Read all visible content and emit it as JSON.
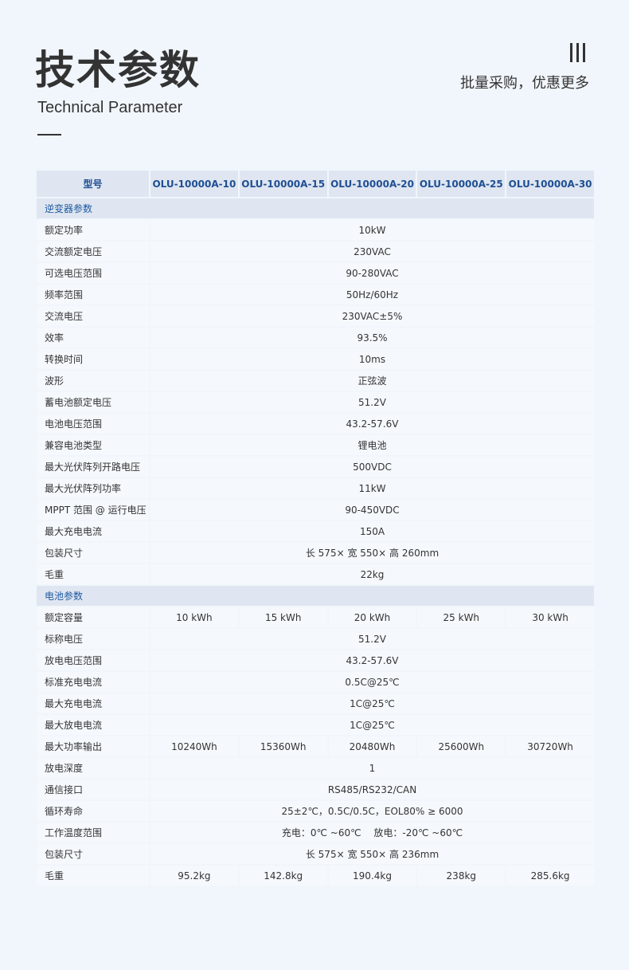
{
  "header": {
    "title": "技术参数",
    "subtitle": "Technical Parameter",
    "promo": "批量采购，优惠更多"
  },
  "table": {
    "model_label": "型号",
    "models": [
      "OLU-10000A-10",
      "OLU-10000A-15",
      "OLU-10000A-20",
      "OLU-10000A-25",
      "OLU-10000A-30"
    ],
    "sections": [
      {
        "title": "逆变器参数",
        "rows": [
          {
            "label": "额定功率",
            "value": "10kW"
          },
          {
            "label": "交流额定电压",
            "value": "230VAC"
          },
          {
            "label": "可选电压范围",
            "value": "90-280VAC"
          },
          {
            "label": "频率范围",
            "value": "50Hz/60Hz"
          },
          {
            "label": "交流电压",
            "value": "230VAC±5%"
          },
          {
            "label": "效率",
            "value": "93.5%"
          },
          {
            "label": "转换时间",
            "value": "10ms"
          },
          {
            "label": "波形",
            "value": "正弦波"
          },
          {
            "label": "蓄电池额定电压",
            "value": "51.2V"
          },
          {
            "label": "电池电压范围",
            "value": "43.2-57.6V"
          },
          {
            "label": "兼容电池类型",
            "value": "锂电池"
          },
          {
            "label": "最大光伏阵列开路电压",
            "value": "500VDC"
          },
          {
            "label": "最大光伏阵列功率",
            "value": "11kW"
          },
          {
            "label": "MPPT 范围 @ 运行电压",
            "value": "90-450VDC"
          },
          {
            "label": "最大充电电流",
            "value": "150A"
          },
          {
            "label": "包装尺寸",
            "value": "长 575× 宽 550× 高 260mm"
          },
          {
            "label": "毛重",
            "value": "22kg"
          }
        ]
      },
      {
        "title": "电池参数",
        "rows": [
          {
            "label": "额定容量",
            "values": [
              "10 kWh",
              "15 kWh",
              "20 kWh",
              "25 kWh",
              "30 kWh"
            ]
          },
          {
            "label": "标称电压",
            "value": "51.2V"
          },
          {
            "label": "放电电压范围",
            "value": "43.2-57.6V"
          },
          {
            "label": "标准充电电流",
            "value": "0.5C@25℃"
          },
          {
            "label": "最大充电电流",
            "value": "1C@25℃"
          },
          {
            "label": "最大放电电流",
            "value": "1C@25℃"
          },
          {
            "label": "最大功率输出",
            "values": [
              "10240Wh",
              "15360Wh",
              "20480Wh",
              "25600Wh",
              "30720Wh"
            ]
          },
          {
            "label": "放电深度",
            "value": "1"
          },
          {
            "label": "通信接口",
            "value": "RS485/RS232/CAN"
          },
          {
            "label": "循环寿命",
            "value": "25±2℃，0.5C/0.5C，EOL80% ≥ 6000"
          },
          {
            "label": "工作温度范围",
            "value": "充电：0℃ ~60℃　 放电：-20℃ ~60℃"
          },
          {
            "label": "包装尺寸",
            "value": "长 575× 宽 550× 高 236mm"
          },
          {
            "label": "毛重",
            "values": [
              "95.2kg",
              "142.8kg",
              "190.4kg",
              "238kg",
              "285.6kg"
            ]
          }
        ]
      }
    ]
  },
  "colors": {
    "accent": "#1f5aa0",
    "header_bg": "#dfe6f1",
    "page_bg": "#f1f6fc"
  }
}
